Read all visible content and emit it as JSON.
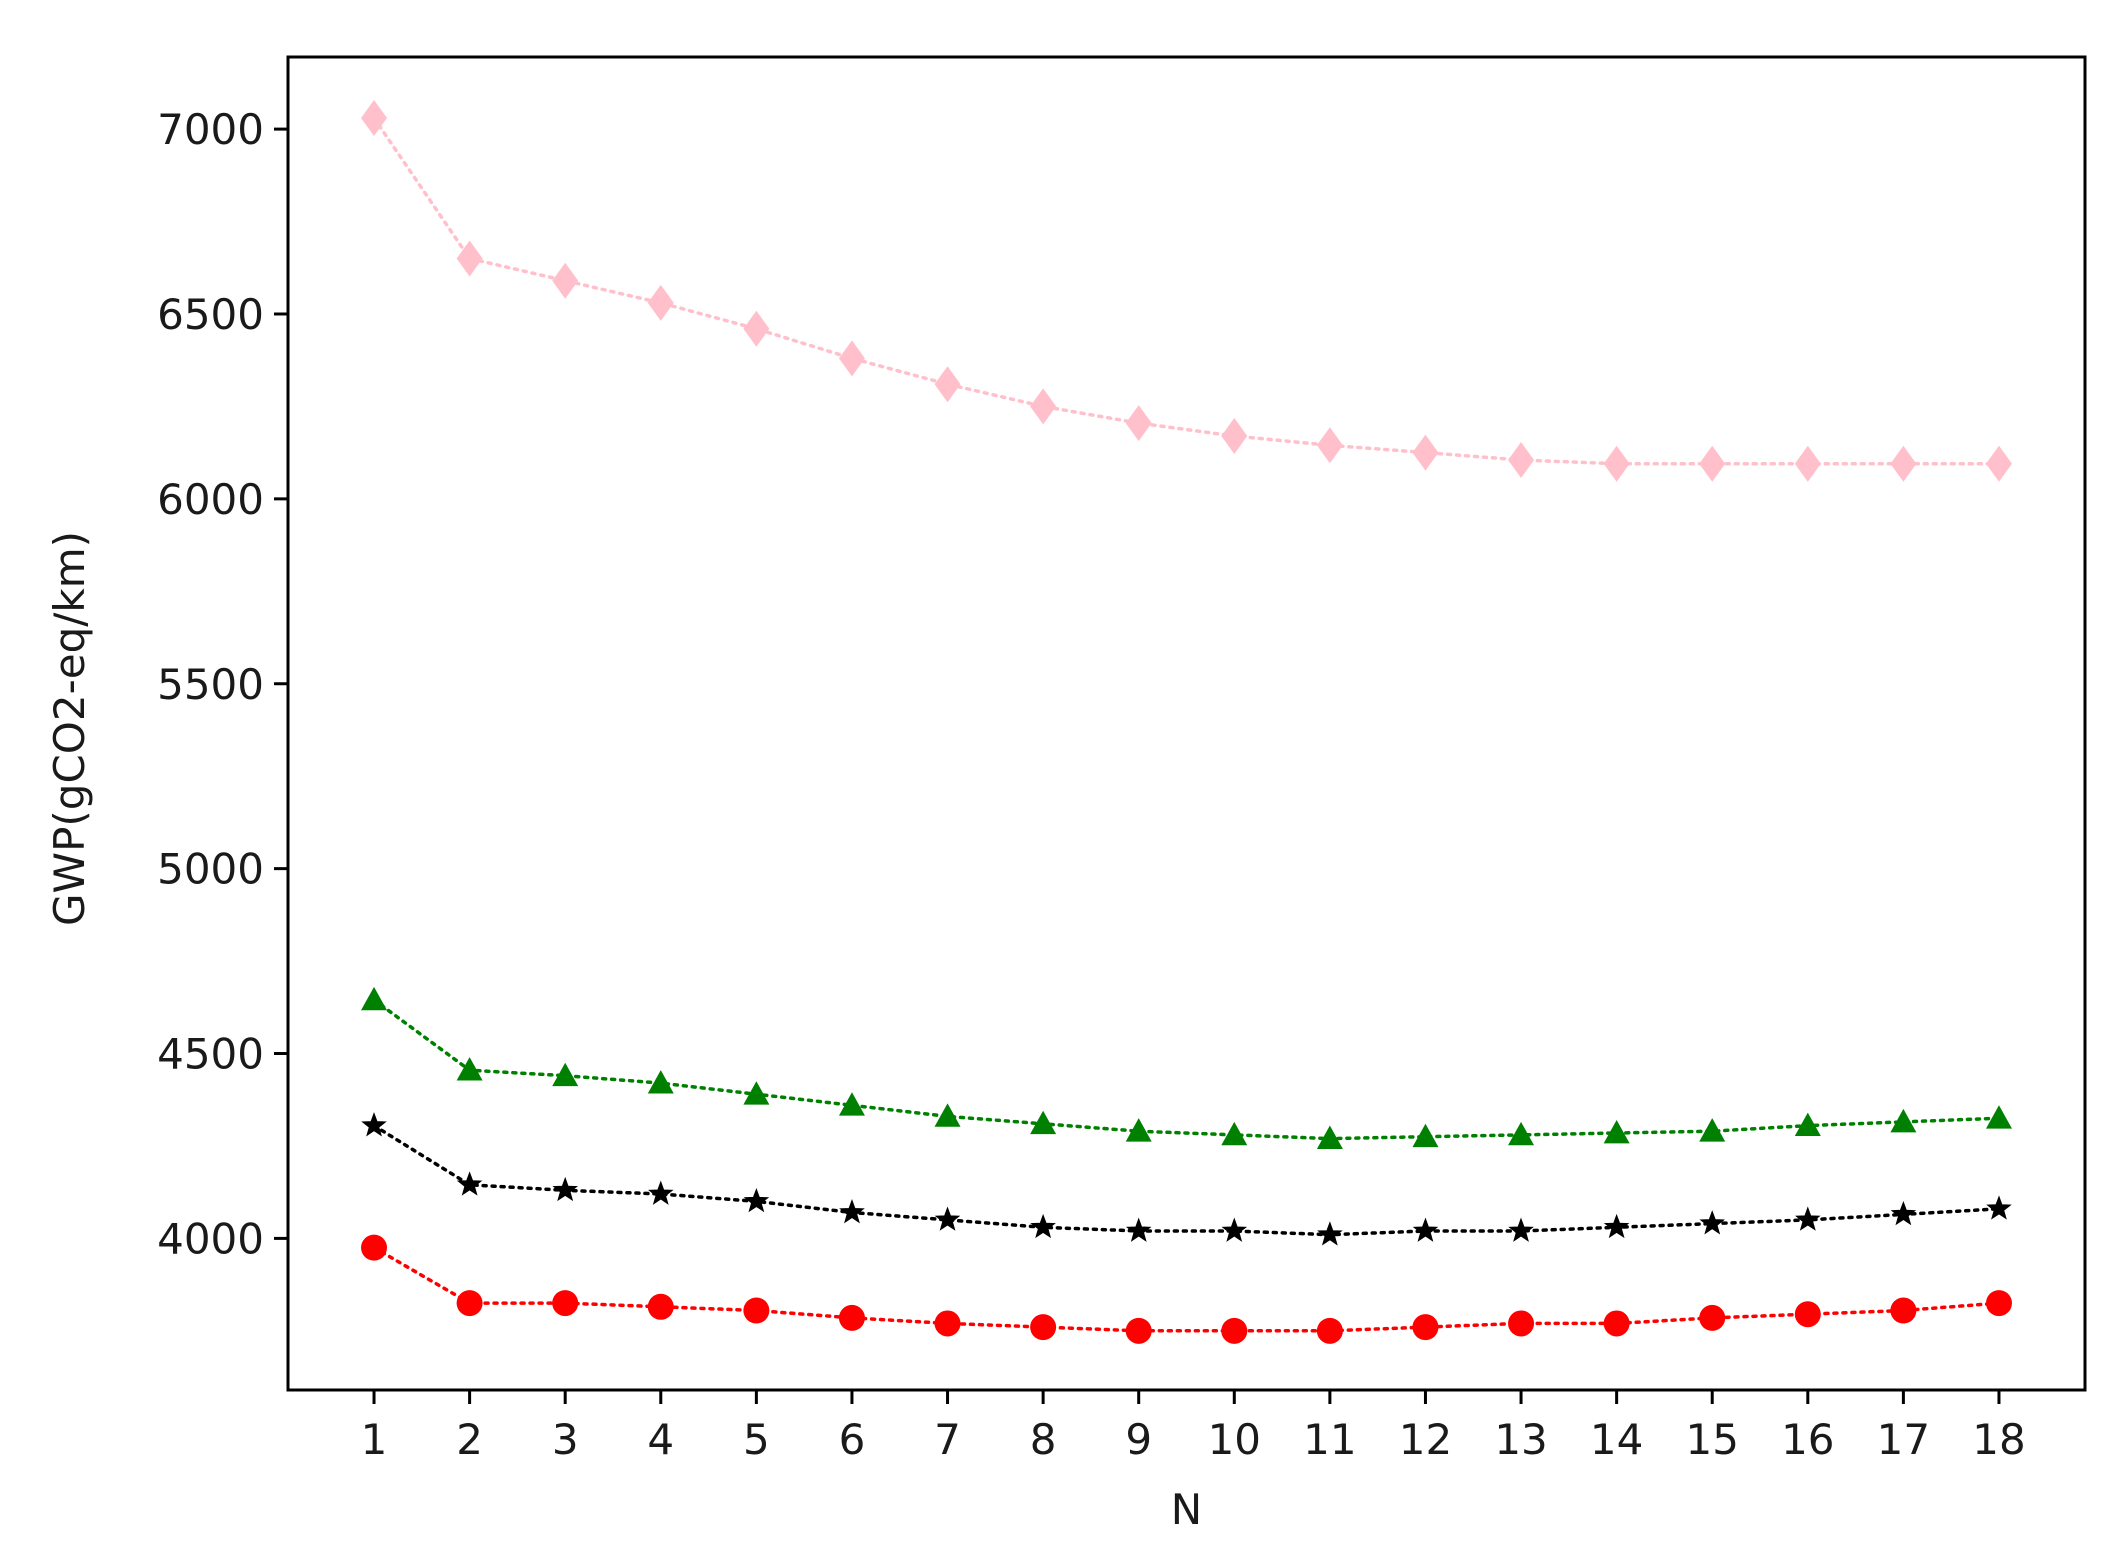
{
  "chart_data": {
    "type": "line",
    "title": "",
    "xlabel": "N",
    "ylabel": "GWP(gCO2-eq/km)",
    "x": [
      1,
      2,
      3,
      4,
      5,
      6,
      7,
      8,
      9,
      10,
      11,
      12,
      13,
      14,
      15,
      16,
      17,
      18
    ],
    "xlim": [
      0.1,
      18.9
    ],
    "ylim": [
      3590,
      7195
    ],
    "yticks": [
      4000,
      4500,
      5000,
      5500,
      6000,
      6500,
      7000
    ],
    "grid": false,
    "legend": "none",
    "series": [
      {
        "color": "#ffc0cb",
        "marker": "diamond",
        "linestyle": "dotted",
        "values": [
          7030,
          6650,
          6590,
          6530,
          6460,
          6380,
          6310,
          6250,
          6205,
          6170,
          6145,
          6125,
          6105,
          6095,
          6095,
          6095,
          6095,
          6095
        ]
      },
      {
        "color": "#008000",
        "marker": "triangle",
        "linestyle": "dotted",
        "values": [
          4645,
          4455,
          4440,
          4420,
          4390,
          4360,
          4330,
          4310,
          4290,
          4280,
          4270,
          4275,
          4280,
          4285,
          4290,
          4305,
          4315,
          4325
        ]
      },
      {
        "color": "#000000",
        "marker": "star",
        "linestyle": "dotted",
        "values": [
          4305,
          4145,
          4130,
          4120,
          4100,
          4070,
          4050,
          4030,
          4020,
          4020,
          4010,
          4020,
          4020,
          4030,
          4040,
          4050,
          4065,
          4080
        ]
      },
      {
        "color": "#ff0000",
        "marker": "circle",
        "linestyle": "dotted",
        "values": [
          3975,
          3825,
          3825,
          3815,
          3805,
          3785,
          3770,
          3760,
          3750,
          3750,
          3750,
          3760,
          3770,
          3770,
          3785,
          3795,
          3805,
          3825
        ]
      }
    ]
  }
}
